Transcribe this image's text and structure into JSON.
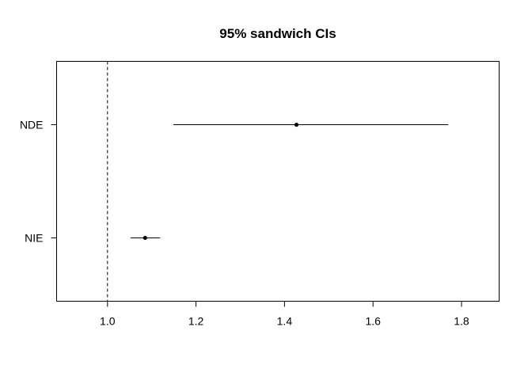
{
  "chart_data": {
    "type": "forest",
    "title": "95% sandwich CIs",
    "xlabel": "",
    "ylabel": "",
    "xlim": [
      0.885,
      1.885
    ],
    "x_ticks": [
      1.0,
      1.2,
      1.4,
      1.6,
      1.8
    ],
    "x_tick_labels": [
      "1.0",
      "1.2",
      "1.4",
      "1.6",
      "1.8"
    ],
    "reference_line": 1.0,
    "grid": false,
    "rows": [
      {
        "label": "NDE",
        "estimate": 1.427,
        "lower": 1.149,
        "upper": 1.77
      },
      {
        "label": "NIE",
        "estimate": 1.085,
        "lower": 1.052,
        "upper": 1.119
      }
    ]
  }
}
